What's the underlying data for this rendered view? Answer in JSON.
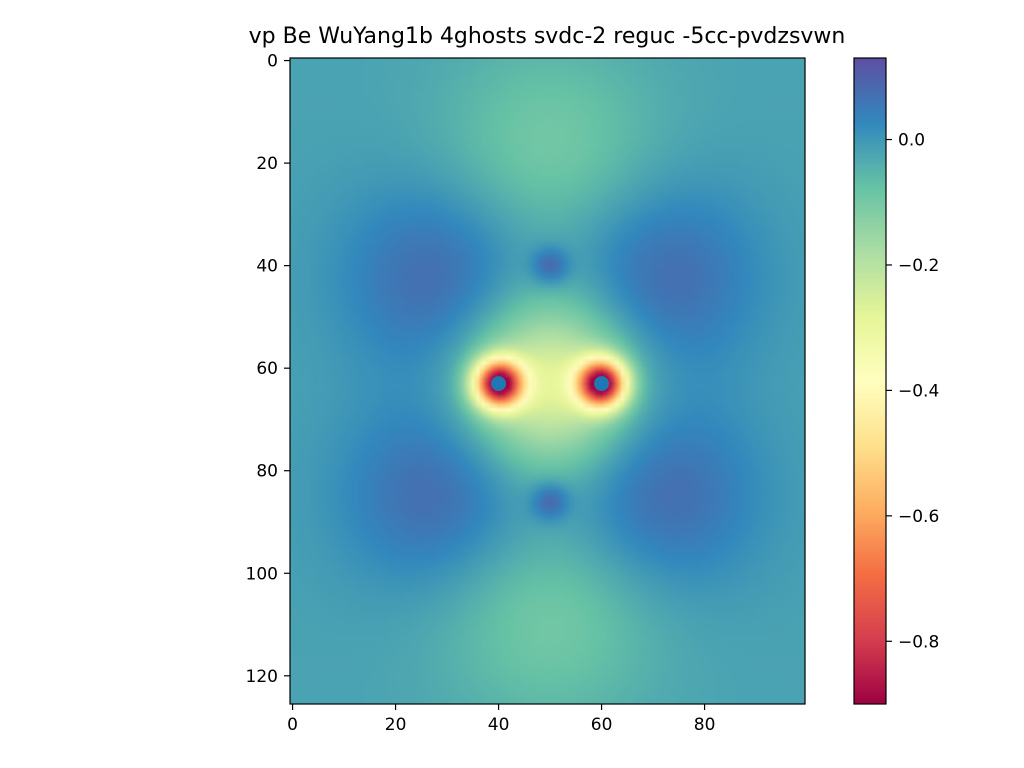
{
  "chart_data": {
    "type": "heatmap",
    "title": "vp Be WuYang1b 4ghosts svdc-2 reguc -5cc-pvdzsvwn",
    "xlabel": "",
    "ylabel": "",
    "grid": false,
    "x_extent": [
      -0.5,
      99.5
    ],
    "y_extent": [
      125.5,
      -0.5
    ],
    "x_ticks": [
      0,
      20,
      40,
      60,
      80
    ],
    "y_ticks": [
      0,
      20,
      40,
      60,
      80,
      100,
      120
    ],
    "background_value": -0.02,
    "colorbar": {
      "colormap": "Spectral",
      "range": [
        -0.9,
        0.13
      ],
      "ticks": [
        0.0,
        -0.2,
        -0.4,
        -0.6,
        -0.8
      ],
      "tick_labels": [
        "0.0",
        "−0.2",
        "−0.4",
        "−0.6",
        "−0.8"
      ],
      "colors": [
        "#9e0142",
        "#d53e4f",
        "#f46d43",
        "#fdae61",
        "#fee08b",
        "#ffffbf",
        "#e6f598",
        "#abdda4",
        "#66c2a5",
        "#3288bd",
        "#5e4fa2"
      ]
    },
    "features": [
      {
        "kind": "well",
        "x": 40,
        "y": 63,
        "value": -0.88
      },
      {
        "kind": "well",
        "x": 60,
        "y": 63,
        "value": -0.88
      },
      {
        "kind": "basin",
        "x": 50,
        "y": 63,
        "value": -0.3
      },
      {
        "kind": "lobe",
        "x": 50,
        "y": 18,
        "value": -0.1
      },
      {
        "kind": "lobe",
        "x": 50,
        "y": 108,
        "value": -0.1
      },
      {
        "kind": "ridge",
        "x": 28,
        "y": 42,
        "value": 0.08
      },
      {
        "kind": "ridge",
        "x": 72,
        "y": 42,
        "value": 0.08
      },
      {
        "kind": "ridge",
        "x": 28,
        "y": 85,
        "value": 0.08
      },
      {
        "kind": "ridge",
        "x": 72,
        "y": 85,
        "value": 0.08
      },
      {
        "kind": "ghost",
        "x": 50,
        "y": 40,
        "value": 0.09
      },
      {
        "kind": "ghost",
        "x": 50,
        "y": 86,
        "value": 0.09
      }
    ],
    "markers": [
      {
        "x": 40,
        "y": 63,
        "color": "#1f77b4"
      },
      {
        "x": 60,
        "y": 63,
        "color": "#1f77b4"
      }
    ]
  }
}
